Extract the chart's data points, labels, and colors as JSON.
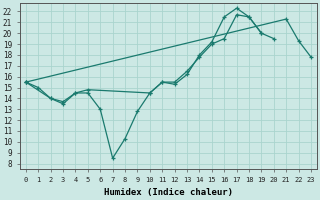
{
  "xlabel": "Humidex (Indice chaleur)",
  "bg_color": "#cce8e4",
  "grid_color": "#aad4ce",
  "line_color": "#1a7a6e",
  "xlim": [
    -0.5,
    23.5
  ],
  "ylim": [
    7.5,
    22.8
  ],
  "xticks": [
    0,
    1,
    2,
    3,
    4,
    5,
    6,
    7,
    8,
    9,
    10,
    11,
    12,
    13,
    14,
    15,
    16,
    17,
    18,
    19,
    20,
    21,
    22,
    23
  ],
  "yticks": [
    8,
    9,
    10,
    11,
    12,
    13,
    14,
    15,
    16,
    17,
    18,
    19,
    20,
    21,
    22
  ],
  "line1_x": [
    0,
    1,
    2,
    3,
    4,
    5,
    6,
    7,
    8,
    9,
    10,
    11,
    12,
    13,
    14,
    15,
    16,
    17,
    18,
    19
  ],
  "line1_y": [
    15.5,
    15.0,
    14.0,
    13.7,
    14.5,
    14.5,
    13.0,
    8.5,
    10.3,
    12.8,
    14.5,
    15.5,
    15.3,
    16.2,
    18.0,
    19.2,
    21.5,
    22.3,
    21.5,
    20.0
  ],
  "line2_x": [
    0,
    2,
    3,
    4,
    5,
    10,
    11,
    12,
    13,
    14,
    15,
    16,
    17,
    18,
    19,
    20
  ],
  "line2_y": [
    15.5,
    14.0,
    13.5,
    14.5,
    14.8,
    14.5,
    15.5,
    15.5,
    16.5,
    17.8,
    19.0,
    19.5,
    21.7,
    21.5,
    20.0,
    19.5
  ],
  "line3_x": [
    0,
    21,
    22,
    23
  ],
  "line3_y": [
    15.5,
    21.3,
    19.3,
    17.8
  ],
  "marker": "+",
  "markersize": 3,
  "linewidth": 0.9
}
